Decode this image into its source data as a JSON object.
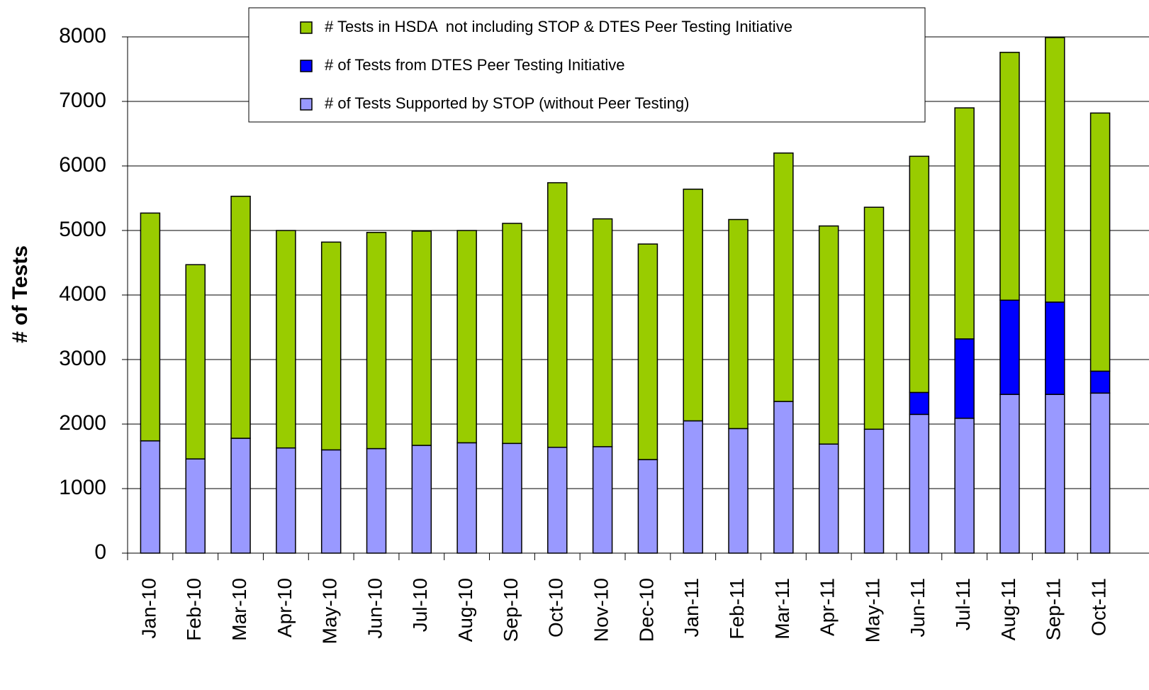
{
  "chart_data": {
    "type": "stacked_bar",
    "y_label": "# of Tests",
    "categories": [
      "Jan-10",
      "Feb-10",
      "Mar-10",
      "Apr-10",
      "May-10",
      "Jun-10",
      "Jul-10",
      "Aug-10",
      "Sep-10",
      "Oct-10",
      "Nov-10",
      "Dec-10",
      "Jan-11",
      "Feb-11",
      "Mar-11",
      "Apr-11",
      "May-11",
      "Jun-11",
      "Jul-11",
      "Aug-11",
      "Sep-11",
      "Oct-11"
    ],
    "series": [
      {
        "name": "# of Tests Supported by STOP (without Peer Testing)",
        "color": "#9999ff",
        "values": [
          1740,
          1460,
          1780,
          1630,
          1600,
          1620,
          1670,
          1710,
          1700,
          1640,
          1650,
          1450,
          2050,
          1930,
          2350,
          1690,
          1920,
          2150,
          2090,
          2460,
          2460,
          2480
        ]
      },
      {
        "name": "# of Tests from DTES Peer Testing Initiative",
        "color": "#0000ff",
        "values": [
          0,
          0,
          0,
          0,
          0,
          0,
          0,
          0,
          0,
          0,
          0,
          0,
          0,
          0,
          0,
          0,
          0,
          340,
          1230,
          1460,
          1430,
          340
        ]
      },
      {
        "name": "# Tests in HSDA  not including STOP & DTES Peer Testing Initiative",
        "color": "#99cc00",
        "values": [
          3530,
          3010,
          3750,
          3370,
          3220,
          3350,
          3320,
          3290,
          3410,
          4100,
          3530,
          3340,
          3590,
          3240,
          3850,
          3380,
          3440,
          3660,
          3580,
          3840,
          4100,
          4000
        ]
      }
    ],
    "ylim": [
      0,
      8000
    ],
    "yticks": [
      0,
      1000,
      2000,
      3000,
      4000,
      5000,
      6000,
      7000,
      8000
    ],
    "grid": true
  }
}
